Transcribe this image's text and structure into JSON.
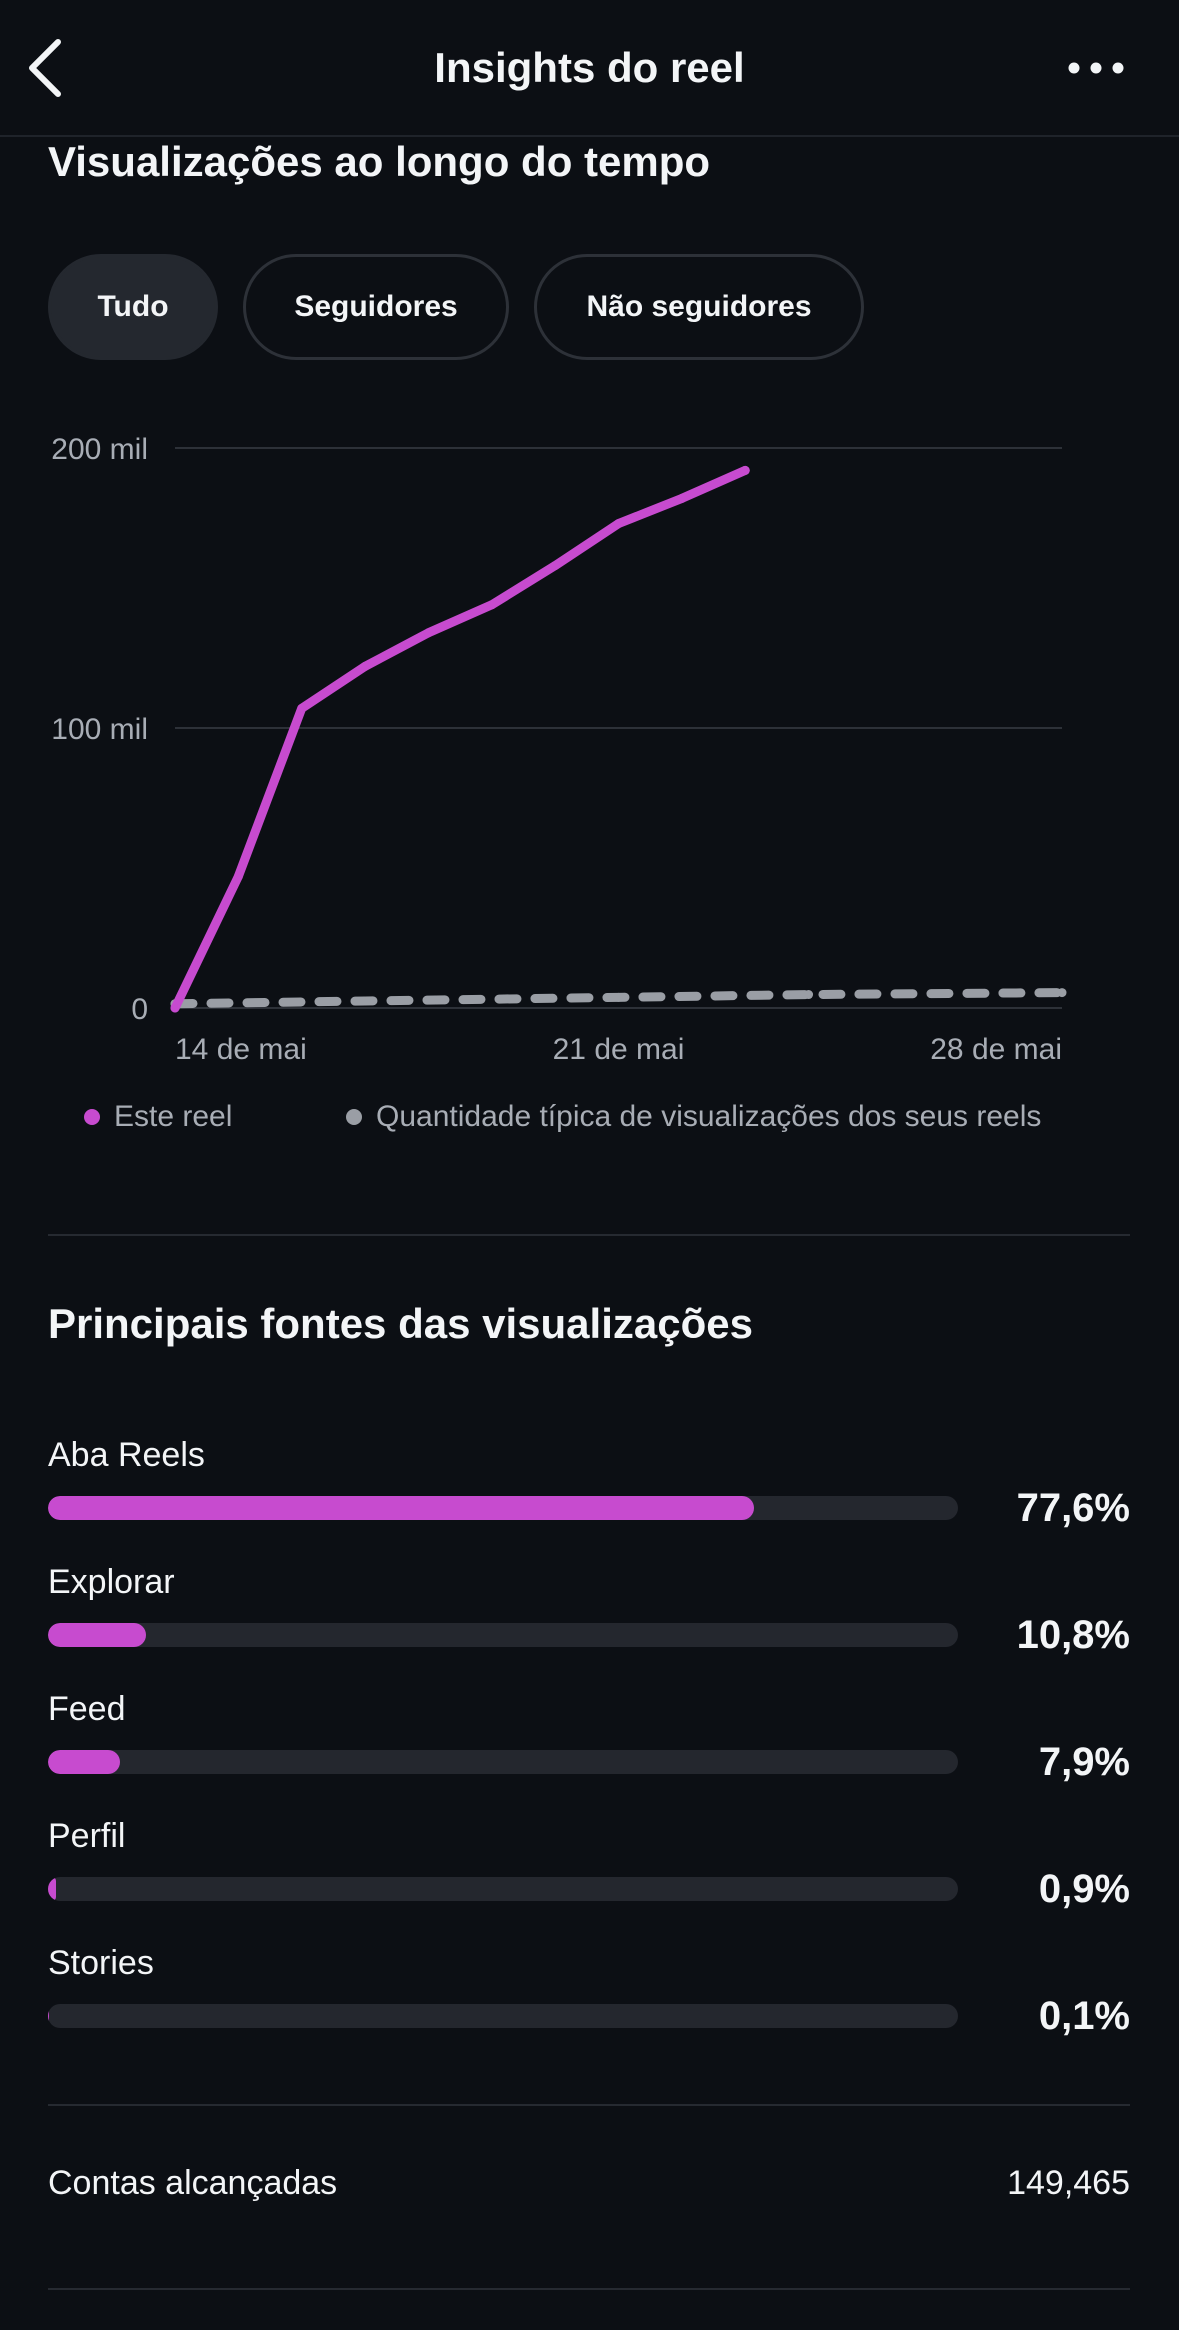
{
  "header": {
    "title": "Insights do reel"
  },
  "views_section": {
    "title": "Visualizações ao longo do tempo",
    "filters": [
      {
        "label": "Tudo",
        "active": true
      },
      {
        "label": "Seguidores",
        "active": false
      },
      {
        "label": "Não seguidores",
        "active": false
      }
    ]
  },
  "chart_data": {
    "type": "line",
    "y_ticks": [
      {
        "value": 0,
        "label": "0"
      },
      {
        "value": 100000,
        "label": "100 mil"
      },
      {
        "value": 200000,
        "label": "200 mil"
      }
    ],
    "x_ticks": [
      {
        "value": "2024-05-14",
        "label": "14 de mai"
      },
      {
        "value": "2024-05-21",
        "label": "21 de mai"
      },
      {
        "value": "2024-05-28",
        "label": "28 de mai"
      }
    ],
    "xlim": [
      "2024-05-14",
      "2024-05-28"
    ],
    "ylim": [
      0,
      200000
    ],
    "grid": true,
    "legend_placement": "bottom",
    "series": [
      {
        "name": "Este reel",
        "color": "#c74bcf",
        "style": "solid",
        "points": [
          [
            "2024-05-14",
            0
          ],
          [
            "2024-05-15",
            47000
          ],
          [
            "2024-05-16",
            107000
          ],
          [
            "2024-05-17",
            122000
          ],
          [
            "2024-05-18",
            134000
          ],
          [
            "2024-05-19",
            144000
          ],
          [
            "2024-05-20",
            158000
          ],
          [
            "2024-05-21",
            173000
          ],
          [
            "2024-05-22",
            182000
          ],
          [
            "2024-05-23",
            192000
          ]
        ]
      },
      {
        "name": "Quantidade típica de visualizações dos seus reels",
        "color": "#9a9ea5",
        "style": "dashed",
        "points": [
          [
            "2024-05-14",
            1500
          ],
          [
            "2024-05-17",
            2500
          ],
          [
            "2024-05-21",
            3800
          ],
          [
            "2024-05-24",
            4800
          ],
          [
            "2024-05-28",
            5500
          ]
        ]
      }
    ]
  },
  "sources_section": {
    "title": "Principais fontes das visualizações",
    "bar_color": "#c74bcf",
    "items": [
      {
        "label": "Aba Reels",
        "percent_text": "77,6%",
        "value": 77.6
      },
      {
        "label": "Explorar",
        "percent_text": "10,8%",
        "value": 10.8
      },
      {
        "label": "Feed",
        "percent_text": "7,9%",
        "value": 7.9
      },
      {
        "label": "Perfil",
        "percent_text": "0,9%",
        "value": 0.9
      },
      {
        "label": "Stories",
        "percent_text": "0,1%",
        "value": 0.1
      }
    ]
  },
  "reach": {
    "label": "Contas alcançadas",
    "value": "149,465"
  },
  "icons": {
    "back": "chevron-left-icon",
    "more": "more-horizontal-icon"
  }
}
